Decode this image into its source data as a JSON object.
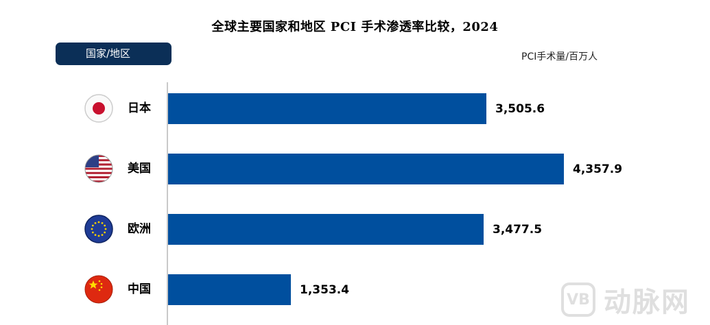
{
  "chart_data": {
    "type": "bar",
    "orientation": "horizontal",
    "title": "全球主要国家和地区 PCI 手术渗透率比较，2024",
    "category_header": "国家/地区",
    "unit_label": "PCI手术量/百万人",
    "categories": [
      "日本",
      "美国",
      "欧洲",
      "中国"
    ],
    "values": [
      3505.6,
      4357.9,
      3477.5,
      1353.4
    ],
    "value_labels": [
      "3,505.6",
      "4,357.9",
      "3,477.5",
      "1,353.4"
    ],
    "flags": [
      "japan-flag-icon",
      "usa-flag-icon",
      "eu-flag-icon",
      "china-flag-icon"
    ],
    "bar_color": "#004f9e",
    "header_color": "#0b2f57",
    "grid": false,
    "legend": "none"
  },
  "watermark": {
    "logo_text": "VB",
    "brand_text": "动脉网"
  }
}
